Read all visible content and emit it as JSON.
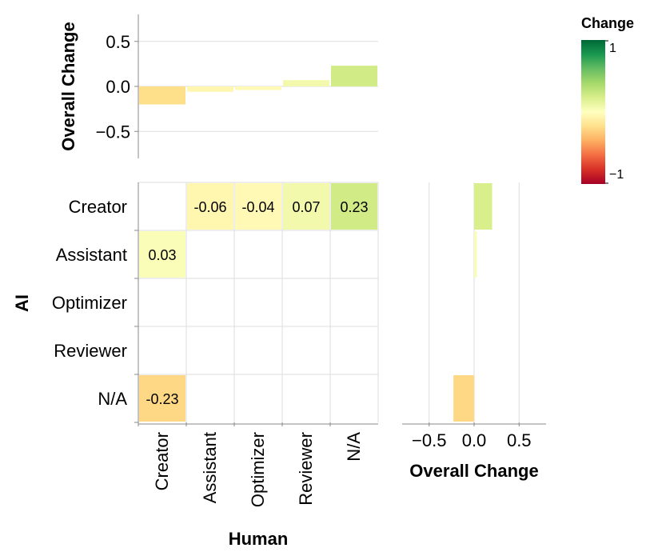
{
  "chart_data": {
    "type": "heatmap",
    "title": "",
    "x_title": "Human",
    "y_title": "AI",
    "x_categories": [
      "Creator",
      "Assistant",
      "Optimizer",
      "Reviewer",
      "N/A"
    ],
    "y_categories": [
      "Creator",
      "Assistant",
      "Optimizer",
      "Reviewer",
      "N/A"
    ],
    "cells": [
      {
        "human": "Assistant",
        "ai": "Creator",
        "value": -0.06,
        "label": "-0.06"
      },
      {
        "human": "Optimizer",
        "ai": "Creator",
        "value": -0.04,
        "label": "-0.04"
      },
      {
        "human": "Reviewer",
        "ai": "Creator",
        "value": 0.07,
        "label": "0.07"
      },
      {
        "human": "N/A",
        "ai": "Creator",
        "value": 0.23,
        "label": "0.23"
      },
      {
        "human": "Creator",
        "ai": "Assistant",
        "value": 0.03,
        "label": "0.03"
      },
      {
        "human": "Creator",
        "ai": "N/A",
        "value": -0.23,
        "label": "-0.23"
      }
    ],
    "top_marginal": {
      "type": "bar",
      "y_title": "Overall Change",
      "categories": [
        "Creator",
        "Assistant",
        "Optimizer",
        "Reviewer",
        "N/A"
      ],
      "values": [
        -0.2,
        -0.06,
        -0.04,
        0.07,
        0.23
      ],
      "ylim": [
        -0.8,
        0.8
      ],
      "y_ticks": [
        "0.5",
        "0.0",
        "−0.5"
      ]
    },
    "right_marginal": {
      "type": "bar",
      "x_title": "Overall Change",
      "categories": [
        "Creator",
        "Assistant",
        "Optimizer",
        "Reviewer",
        "N/A"
      ],
      "values": [
        0.2,
        0.03,
        0,
        0,
        -0.23
      ],
      "xlim": [
        -0.8,
        0.8
      ],
      "x_ticks": [
        "−0.5",
        "0.0",
        "0.5"
      ]
    },
    "legend": {
      "title": "Change",
      "max_label": "1",
      "min_label": "−1",
      "colors": [
        "#006837",
        "#1a9850",
        "#66bd63",
        "#a6d96a",
        "#d9ef8b",
        "#ffffbf",
        "#fee08b",
        "#fdae61",
        "#f46d43",
        "#d73027",
        "#a50026"
      ]
    }
  }
}
